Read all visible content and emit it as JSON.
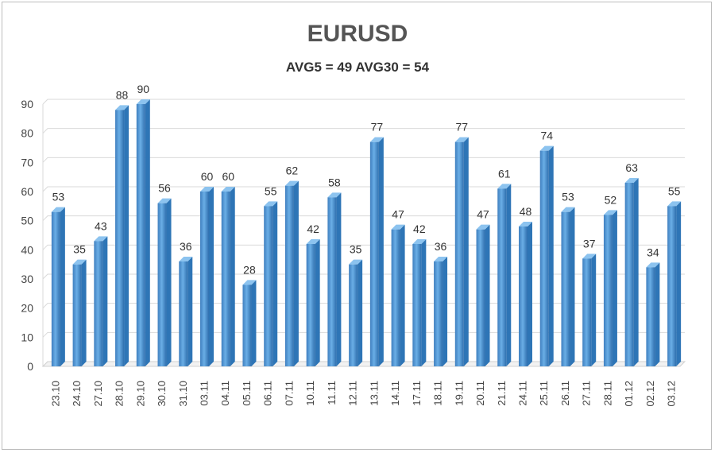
{
  "chart_data": {
    "type": "bar",
    "title": "EURUSD",
    "subtitle": "AVG5 = 49 AVG30 = 54",
    "categories": [
      "23.10",
      "24.10",
      "27.10",
      "28.10",
      "29.10",
      "30.10",
      "31.10",
      "03.11",
      "04.11",
      "05.11",
      "06.11",
      "07.11",
      "10.11",
      "11.11",
      "12.11",
      "13.11",
      "14.11",
      "17.11",
      "18.11",
      "19.11",
      "20.11",
      "21.11",
      "24.11",
      "25.11",
      "26.11",
      "27.11",
      "28.11",
      "01.12",
      "02.12",
      "03.12"
    ],
    "values": [
      53,
      35,
      43,
      88,
      90,
      56,
      36,
      60,
      60,
      28,
      55,
      62,
      42,
      58,
      35,
      77,
      47,
      42,
      36,
      77,
      47,
      61,
      48,
      74,
      53,
      37,
      52,
      63,
      34,
      55
    ],
    "xlabel": "",
    "ylabel": "",
    "ylim": [
      0,
      90
    ],
    "yticks": [
      0,
      10,
      20,
      30,
      40,
      50,
      60,
      70,
      80,
      90
    ],
    "grid": true,
    "bar_color": "#5b9bd5",
    "bar_color_dark": "#2e75b6",
    "legend": "none"
  }
}
